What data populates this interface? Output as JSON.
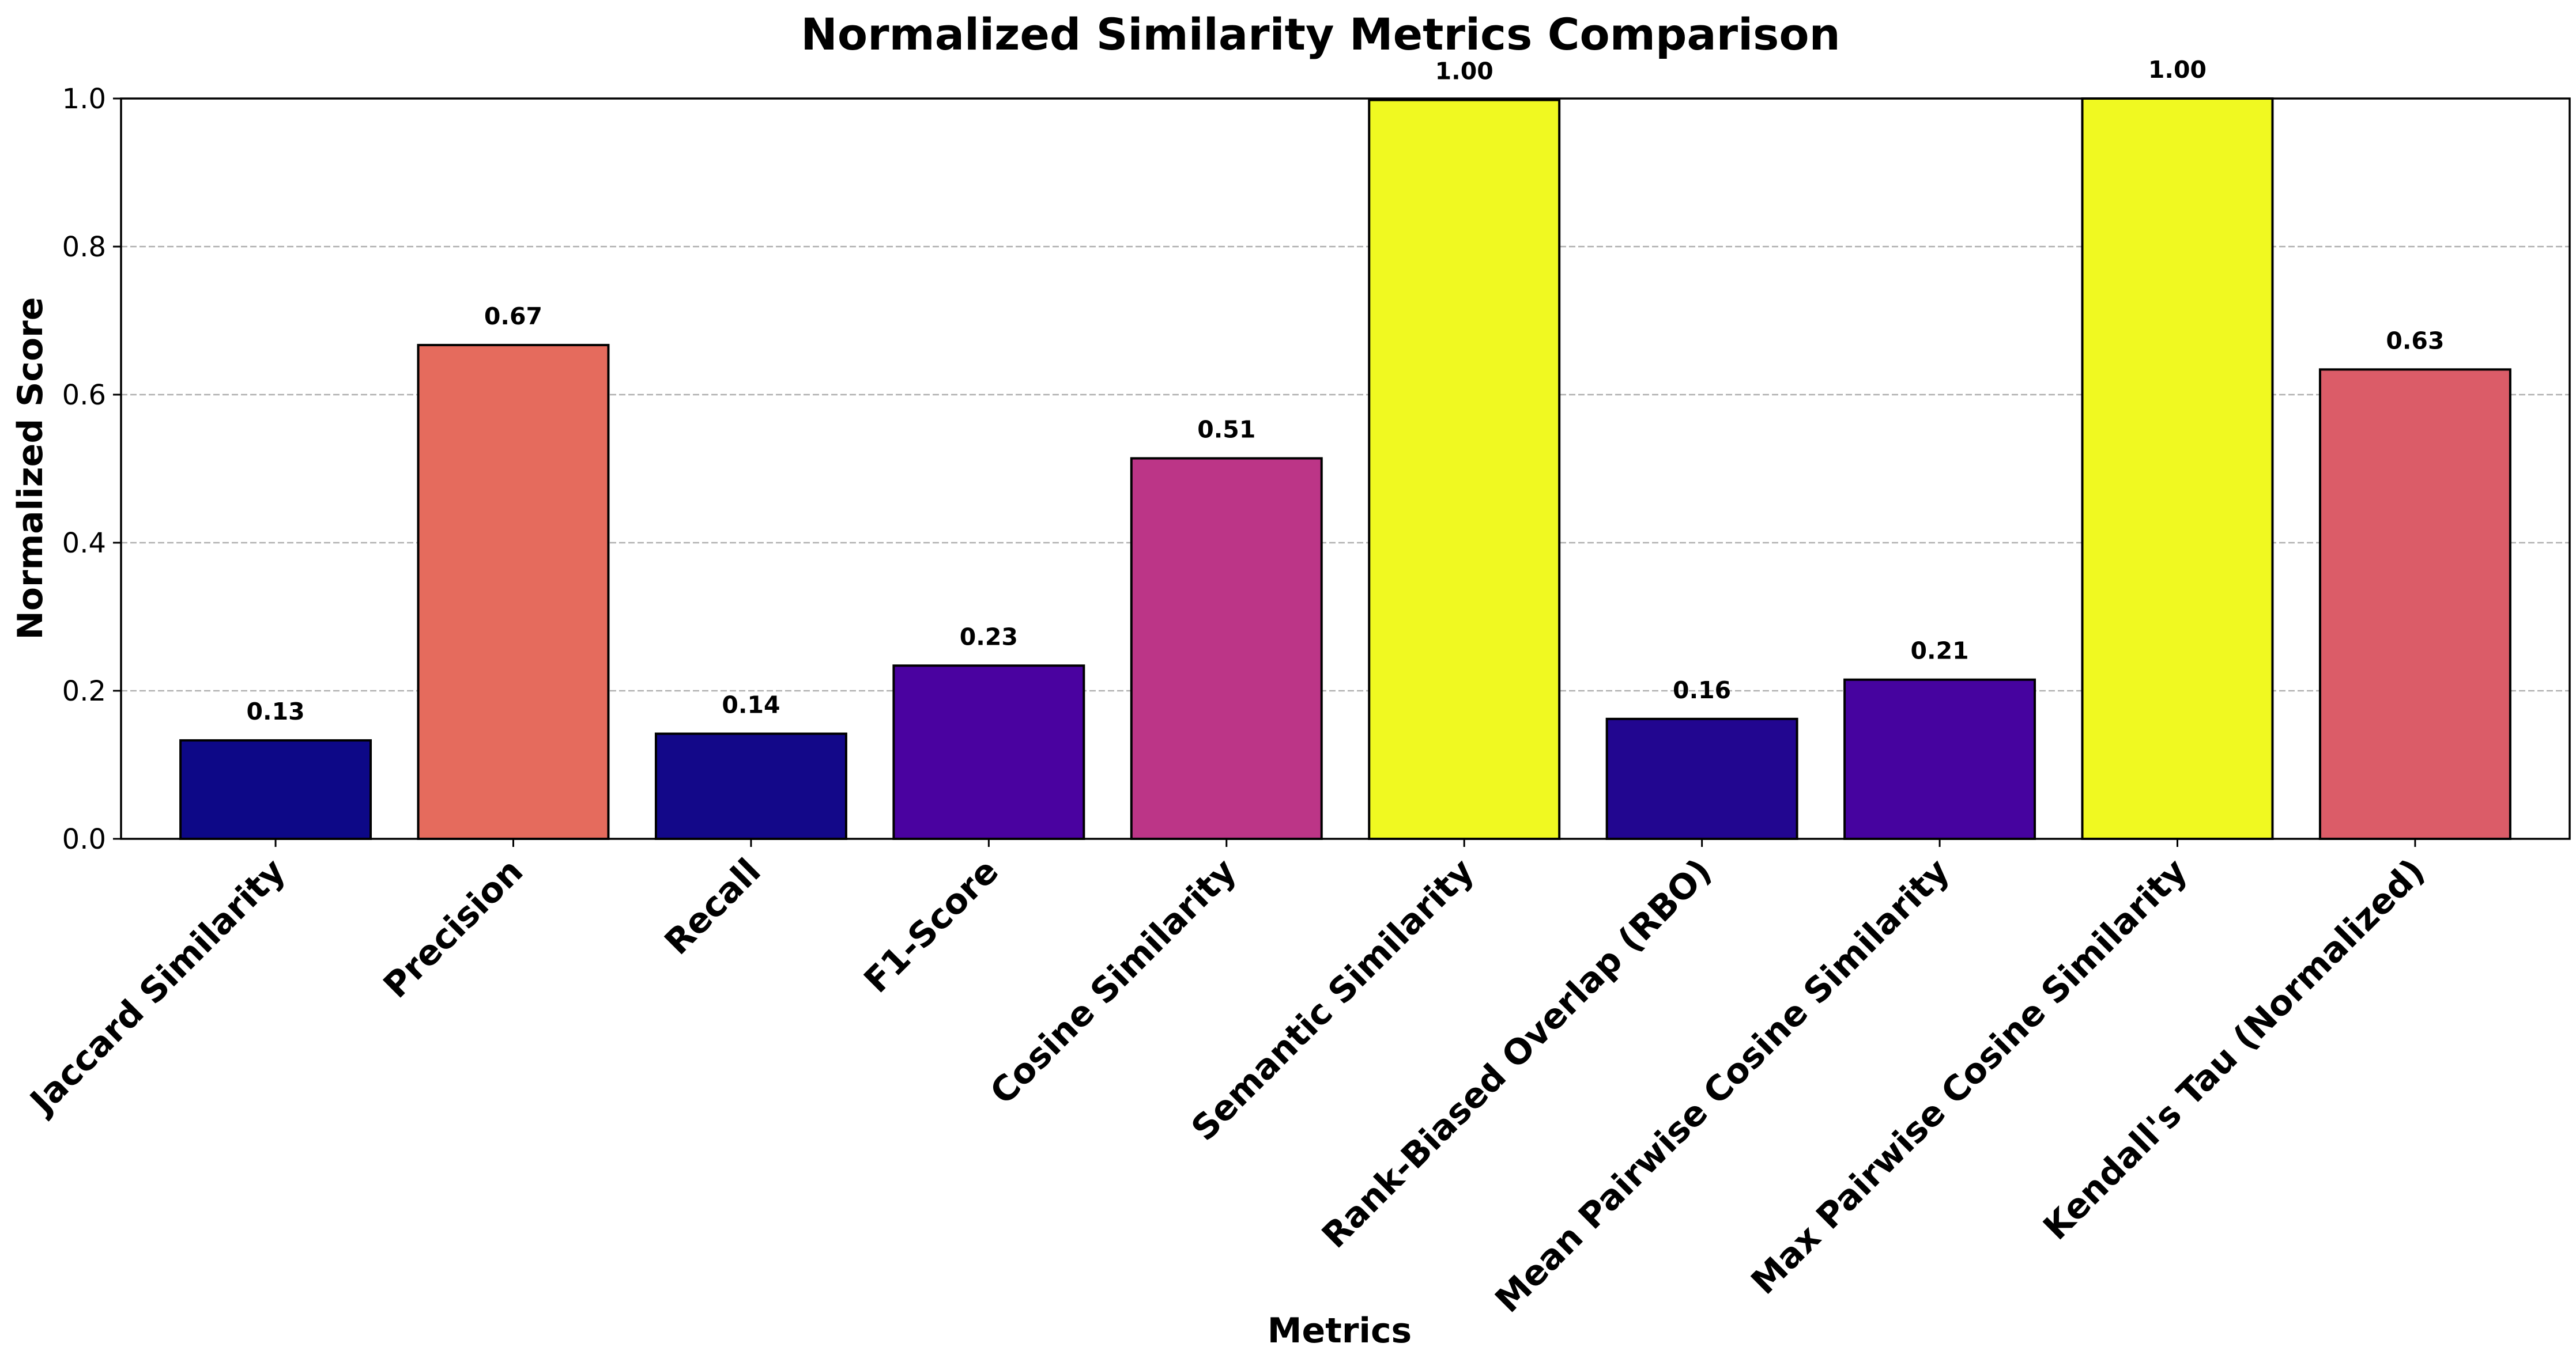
{
  "chart_data": {
    "type": "bar",
    "title": "Normalized Similarity Metrics Comparison",
    "xlabel": "Metrics",
    "ylabel": "Normalized Score",
    "ylim": [
      0,
      1.0
    ],
    "yticks": [
      "0.0",
      "0.2",
      "0.4",
      "0.6",
      "0.8",
      "1.0"
    ],
    "grid": "y-dashed",
    "categories": [
      "Jaccard Similarity",
      "Precision",
      "Recall",
      "F1-Score",
      "Cosine Similarity",
      "Semantic Similarity",
      "Rank-Biased Overlap (RBO)",
      "Mean Pairwise Cosine Similarity",
      "Max Pairwise Cosine Similarity",
      "Kendall's Tau (Normalized)"
    ],
    "values": [
      0.133,
      0.667,
      0.142,
      0.234,
      0.514,
      0.998,
      0.162,
      0.215,
      1.0,
      0.634
    ],
    "value_labels": [
      "0.13",
      "0.67",
      "0.14",
      "0.23",
      "0.51",
      "1.00",
      "0.16",
      "0.21",
      "1.00",
      "0.63"
    ],
    "colors": [
      "#0d0887",
      "#e56b5d",
      "#130889",
      "#4a02a0",
      "#bc3587",
      "#f0f921",
      "#220690",
      "#46039f",
      "#f0f921",
      "#db5c68"
    ]
  }
}
